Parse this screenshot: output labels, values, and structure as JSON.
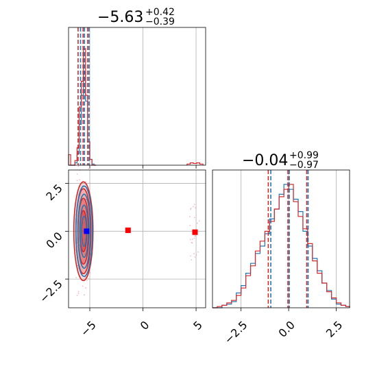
{
  "colors": {
    "series_a": "#1f77b4",
    "series_b": "#d62728",
    "marker_blue": "#0000ff",
    "marker_red": "#ff0000"
  },
  "chart_data": {
    "type": "corner",
    "params": [
      {
        "title": {
          "main": "−5.63",
          "sup": "+0.42",
          "sub": "−0.39"
        },
        "median": -5.63,
        "quantiles_blue": [
          -6.0,
          -5.63,
          -5.2
        ],
        "quantiles_red": [
          -6.1,
          -5.63,
          -5.2
        ],
        "xlim": [
          -7.0,
          5.9
        ],
        "xticks": [
          -5,
          0,
          5
        ],
        "xticklabels": [
          "−5",
          "0",
          "5"
        ]
      },
      {
        "title": {
          "main": "−0.04",
          "sup": "+0.99",
          "sub": "−0.97"
        },
        "median": -0.04,
        "quantiles_blue": [
          -1.01,
          -0.04,
          0.95
        ],
        "quantiles_red": [
          -1.07,
          -0.04,
          0.95
        ],
        "xlim": [
          -4.0,
          3.2
        ],
        "xticks": [
          -2.5,
          0.0,
          2.5
        ],
        "xticklabels": [
          "−2.5",
          "0.0",
          "2.5"
        ]
      }
    ],
    "scatter_panel": {
      "xlim": [
        -7.0,
        5.9
      ],
      "ylim": [
        -4.0,
        3.2
      ],
      "yticks": [
        -2.5,
        0.0,
        2.5
      ],
      "yticklabels": [
        "−2.5",
        "0.0",
        "2.5"
      ],
      "markers": [
        {
          "x": -5.3,
          "y": 0.0,
          "color": "blue"
        },
        {
          "x": -1.4,
          "y": 0.05,
          "color": "red"
        },
        {
          "x": 4.9,
          "y": -0.05,
          "color": "red"
        }
      ]
    },
    "hist_p1": {
      "bin_edges": [
        -7.0,
        -6.8,
        -6.6,
        -6.4,
        -6.2,
        -6.0,
        -5.8,
        -5.6,
        -5.4,
        -5.2,
        -5.0,
        -4.8,
        -4.6,
        -4.4
      ],
      "blue": [
        0,
        0,
        0,
        0.02,
        0.1,
        0.35,
        0.6,
        0.8,
        0.55,
        0.2,
        0.05,
        0.01,
        0
      ],
      "red": [
        0.09,
        0,
        0,
        0.04,
        0.15,
        0.5,
        0.72,
        1.0,
        0.6,
        0.2,
        0.05,
        0,
        0
      ],
      "red_tail": {
        "x": [
          4.3,
          4.6,
          4.9,
          5.2,
          5.5
        ],
        "v": [
          0.01,
          0.02,
          0.015,
          0.02,
          0.01
        ]
      }
    },
    "hist_p2": {
      "bin_edges": [
        -4.0,
        -3.75,
        -3.5,
        -3.25,
        -3.0,
        -2.75,
        -2.5,
        -2.25,
        -2.0,
        -1.75,
        -1.5,
        -1.25,
        -1.0,
        -0.75,
        -0.5,
        -0.25,
        0.0,
        0.25,
        0.5,
        0.75,
        1.0,
        1.25,
        1.5,
        1.75,
        2.0,
        2.25,
        2.5,
        2.75,
        3.0,
        3.2
      ],
      "blue": [
        0,
        0,
        0.02,
        0.03,
        0.05,
        0.12,
        0.18,
        0.28,
        0.36,
        0.44,
        0.5,
        0.6,
        0.72,
        0.8,
        0.92,
        1.0,
        0.96,
        0.88,
        0.78,
        0.62,
        0.5,
        0.4,
        0.3,
        0.2,
        0.14,
        0.07,
        0.03,
        0.02,
        0.01
      ],
      "red": [
        0,
        0.01,
        0.02,
        0.04,
        0.06,
        0.1,
        0.16,
        0.26,
        0.34,
        0.46,
        0.54,
        0.62,
        0.7,
        0.8,
        0.9,
        0.96,
        1.0,
        0.86,
        0.74,
        0.64,
        0.52,
        0.38,
        0.28,
        0.2,
        0.13,
        0.08,
        0.04,
        0.02,
        0.01
      ]
    }
  }
}
